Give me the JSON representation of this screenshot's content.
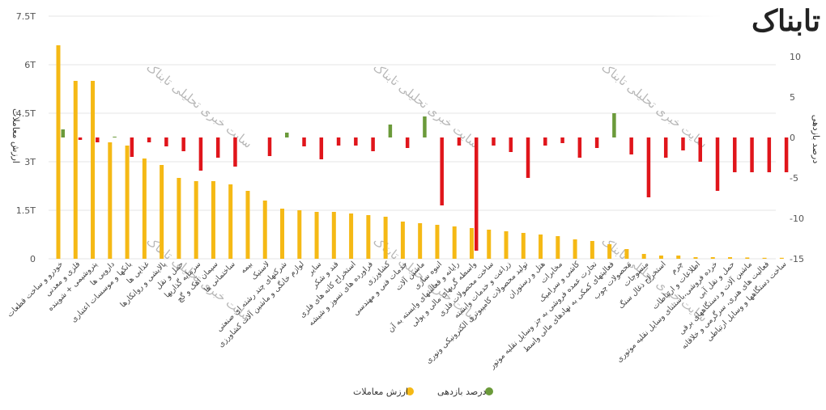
{
  "brand": {
    "logo_text": "تابناک",
    "watermark_text": "سایت خبری تحلیلی تابناک"
  },
  "chart_data": {
    "type": "bar",
    "title": "",
    "y_left": {
      "label": "ارزش معاملات",
      "ticks": [
        "0",
        "1.5T",
        "3T",
        "4.5T",
        "6T",
        "7.5T"
      ],
      "range": [
        0,
        7.5
      ]
    },
    "y_right": {
      "label": "درصد بازدهی",
      "ticks": [
        "-15",
        "-10",
        "-5",
        "0",
        "5",
        "10"
      ],
      "range": [
        -15,
        15
      ]
    },
    "colors": {
      "value": "#F5B915",
      "return_pos": "#6B9A3A",
      "return_neg": "#E0151B"
    },
    "legend": {
      "value_label": "ارزش معاملات",
      "return_label": "درصد بازدهی"
    },
    "categories": [
      "خودرو و ساخت قطعات",
      "فلزی و معدنی",
      "پتروشیمی + شوینده",
      "دارویی ها",
      "بانکها و موسسات اعتباری",
      "غذایی ها",
      "پالایشی و روانکارها",
      "حمل و نقل",
      "سرمایه گذاریها",
      "سیمان آهک و گچ",
      "ساختمانی ها",
      "بیمه",
      "لاستیک",
      "شرکتهای چند رشته ای صنعتی",
      "لوازم خانگی و ماشین آلات کشاورزی",
      "سایر",
      "قند و شکر",
      "استخراج کانه های فلزی",
      "فراورده های نسوز و شیشه",
      "کشاورزی",
      "خدمات فنی و مهندسی",
      "ماشین آلات",
      "انبوه سازی",
      "رایانه و فعالیتهای وابسته به آن",
      "واسطه گریهای مالی و پولی",
      "ساخت محصولات فلزی",
      "زراعت و خدمات وابسته",
      "تولید محصولات کامپیوتری الکترونیکی ونوری",
      "هتل و رستوران",
      "مخابرات",
      "کاشی و سرامیک",
      "تجارت عمده فروشی به جز وسایل نقلیه موتور",
      "فعالیتهای کمکی به نهادهای مالی واسط",
      "محصولات چوب",
      "منسوجات",
      "استخراج ذغال سنگ",
      "چرم",
      "اطلاعات و ارتباطات",
      "خرده فروشی،باستثنای وسایل نقلیه موتوری",
      "حمل و نقل آبی",
      "ماشین آلات و دستگاههای برقی",
      "فعالیت های هنری، سرگرمی و خلاقانه",
      "ساخت دستگاهها و وسایل ارتباطی"
    ],
    "values": [
      6.6,
      5.5,
      5.5,
      3.6,
      3.5,
      3.1,
      2.9,
      2.5,
      2.4,
      2.4,
      2.3,
      2.1,
      1.8,
      1.55,
      1.5,
      1.45,
      1.45,
      1.4,
      1.35,
      1.3,
      1.15,
      1.1,
      1.05,
      1.0,
      0.95,
      0.9,
      0.85,
      0.8,
      0.75,
      0.7,
      0.6,
      0.55,
      0.45,
      0.3,
      0.15,
      0.1,
      0.1,
      0.05,
      0.05,
      0.05,
      0.04,
      0.03,
      0.03
    ],
    "returns": [
      1.0,
      -0.3,
      -0.6,
      0.1,
      -2.4,
      -0.6,
      -1.1,
      -1.7,
      -4.1,
      -2.5,
      -3.6,
      0.0,
      -2.3,
      0.6,
      -1.1,
      -2.7,
      -1.0,
      -1.0,
      -1.7,
      1.6,
      -1.3,
      2.6,
      -8.4,
      -1.0,
      -14.0,
      -1.0,
      -1.8,
      -5.0,
      -1.0,
      -0.7,
      -2.5,
      -1.3,
      3.0,
      -2.1,
      -7.4,
      -2.5,
      -1.6,
      -3.0,
      -6.6,
      -4.3,
      -4.3,
      -4.3,
      -4.3
    ]
  }
}
